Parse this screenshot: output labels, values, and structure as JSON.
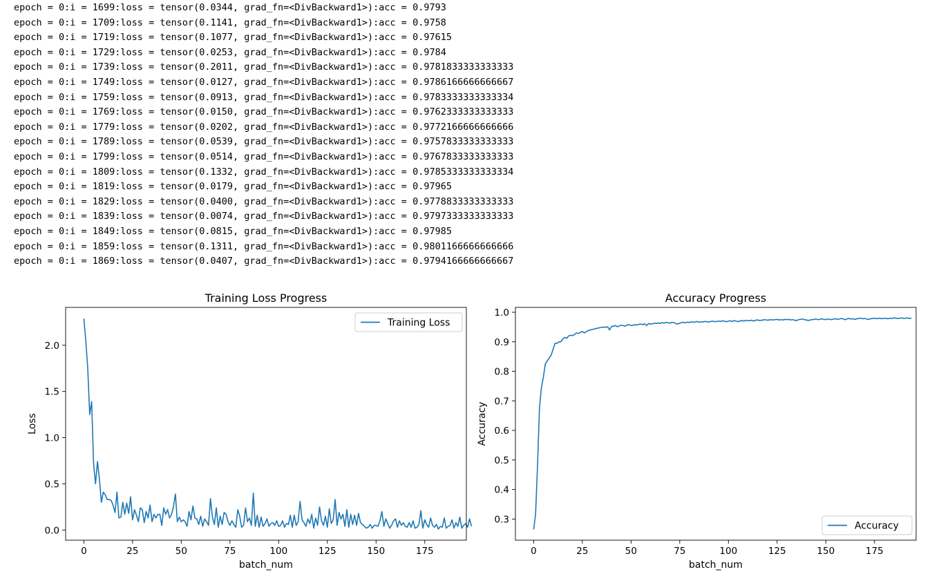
{
  "log_lines": [
    "epoch = 0:i = 1699:loss = tensor(0.0344, grad_fn=<DivBackward1>):acc = 0.9793",
    "epoch = 0:i = 1709:loss = tensor(0.1141, grad_fn=<DivBackward1>):acc = 0.9758",
    "epoch = 0:i = 1719:loss = tensor(0.1077, grad_fn=<DivBackward1>):acc = 0.97615",
    "epoch = 0:i = 1729:loss = tensor(0.0253, grad_fn=<DivBackward1>):acc = 0.9784",
    "epoch = 0:i = 1739:loss = tensor(0.2011, grad_fn=<DivBackward1>):acc = 0.9781833333333333",
    "epoch = 0:i = 1749:loss = tensor(0.0127, grad_fn=<DivBackward1>):acc = 0.9786166666666667",
    "epoch = 0:i = 1759:loss = tensor(0.0913, grad_fn=<DivBackward1>):acc = 0.9783333333333334",
    "epoch = 0:i = 1769:loss = tensor(0.0150, grad_fn=<DivBackward1>):acc = 0.9762333333333333",
    "epoch = 0:i = 1779:loss = tensor(0.0202, grad_fn=<DivBackward1>):acc = 0.9772166666666666",
    "epoch = 0:i = 1789:loss = tensor(0.0539, grad_fn=<DivBackward1>):acc = 0.9757833333333333",
    "epoch = 0:i = 1799:loss = tensor(0.0514, grad_fn=<DivBackward1>):acc = 0.9767833333333333",
    "epoch = 0:i = 1809:loss = tensor(0.1332, grad_fn=<DivBackward1>):acc = 0.9785333333333334",
    "epoch = 0:i = 1819:loss = tensor(0.0179, grad_fn=<DivBackward1>):acc = 0.97965",
    "epoch = 0:i = 1829:loss = tensor(0.0400, grad_fn=<DivBackward1>):acc = 0.9778833333333333",
    "epoch = 0:i = 1839:loss = tensor(0.0074, grad_fn=<DivBackward1>):acc = 0.9797333333333333",
    "epoch = 0:i = 1849:loss = tensor(0.0815, grad_fn=<DivBackward1>):acc = 0.97985",
    "epoch = 0:i = 1859:loss = tensor(0.1311, grad_fn=<DivBackward1>):acc = 0.9801166666666666",
    "epoch = 0:i = 1869:loss = tensor(0.0407, grad_fn=<DivBackward1>):acc = 0.9794166666666667"
  ],
  "colors": {
    "series": "#1f77b4",
    "axis": "#000000",
    "legend_border": "#cccccc"
  },
  "chart_data": [
    {
      "type": "line",
      "title": "Training Loss Progress",
      "xlabel": "batch_num",
      "ylabel": "Loss",
      "xlim": [
        -9.35,
        196.35
      ],
      "ylim": [
        -0.11,
        2.41
      ],
      "xticks": [
        0,
        25,
        50,
        75,
        100,
        125,
        150,
        175
      ],
      "yticks": [
        0.0,
        0.5,
        1.0,
        1.5,
        2.0
      ],
      "ytick_labels": [
        "0.0",
        "0.5",
        "1.0",
        "1.5",
        "2.0"
      ],
      "legend_position": "upper right",
      "grid": false,
      "series": [
        {
          "name": "Training Loss",
          "values": [
            2.29,
            2.05,
            1.75,
            1.25,
            1.39,
            0.72,
            0.5,
            0.74,
            0.55,
            0.3,
            0.41,
            0.38,
            0.33,
            0.33,
            0.32,
            0.27,
            0.19,
            0.41,
            0.13,
            0.14,
            0.3,
            0.17,
            0.29,
            0.18,
            0.36,
            0.11,
            0.22,
            0.16,
            0.09,
            0.24,
            0.22,
            0.08,
            0.2,
            0.13,
            0.27,
            0.09,
            0.17,
            0.13,
            0.17,
            0.17,
            0.05,
            0.24,
            0.17,
            0.22,
            0.13,
            0.17,
            0.25,
            0.39,
            0.09,
            0.14,
            0.09,
            0.11,
            0.09,
            0.04,
            0.2,
            0.11,
            0.26,
            0.13,
            0.12,
            0.06,
            0.15,
            0.04,
            0.12,
            0.09,
            0.05,
            0.34,
            0.14,
            0.06,
            0.24,
            0.03,
            0.15,
            0.06,
            0.19,
            0.17,
            0.09,
            0.05,
            0.1,
            0.06,
            0.03,
            0.22,
            0.15,
            0.03,
            0.05,
            0.24,
            0.09,
            0.13,
            0.05,
            0.4,
            0.04,
            0.16,
            0.03,
            0.14,
            0.04,
            0.07,
            0.12,
            0.04,
            0.07,
            0.08,
            0.05,
            0.1,
            0.04,
            0.05,
            0.1,
            0.03,
            0.07,
            0.06,
            0.16,
            0.03,
            0.16,
            0.05,
            0.09,
            0.31,
            0.11,
            0.08,
            0.04,
            0.12,
            0.07,
            0.17,
            0.02,
            0.13,
            0.05,
            0.25,
            0.1,
            0.05,
            0.15,
            0.03,
            0.23,
            0.07,
            0.11,
            0.33,
            0.05,
            0.19,
            0.12,
            0.17,
            0.04,
            0.22,
            0.03,
            0.17,
            0.06,
            0.16,
            0.05,
            0.18,
            0.08,
            0.06,
            0.04,
            0.02,
            0.03,
            0.06,
            0.02,
            0.05,
            0.05,
            0.04,
            0.1,
            0.2,
            0.04,
            0.12,
            0.07,
            0.02,
            0.05,
            0.1,
            0.12,
            0.03,
            0.1,
            0.05,
            0.08,
            0.04,
            0.03,
            0.08,
            0.03,
            0.1,
            0.02,
            0.03,
            0.06,
            0.21,
            0.02,
            0.11,
            0.06,
            0.03,
            0.13,
            0.05,
            0.03,
            0.06,
            0.01,
            0.04,
            0.03,
            0.13,
            0.02,
            0.04,
            0.05,
            0.11,
            0.02,
            0.08,
            0.04,
            0.14,
            0.02,
            0.05,
            0.07,
            0.03,
            0.12,
            0.04
          ]
        }
      ]
    },
    {
      "type": "line",
      "title": "Accuracy Progress",
      "xlabel": "batch_num",
      "ylabel": "Accuracy",
      "xlim": [
        -9.35,
        196.35
      ],
      "ylim": [
        0.2285,
        1.0165
      ],
      "xticks": [
        0,
        25,
        50,
        75,
        100,
        125,
        150,
        175
      ],
      "yticks": [
        0.3,
        0.4,
        0.5,
        0.6,
        0.7,
        0.8,
        0.9,
        1.0
      ],
      "ytick_labels": [
        "0.3",
        "0.4",
        "0.5",
        "0.6",
        "0.7",
        "0.8",
        "0.9",
        "1.0"
      ],
      "legend_position": "lower right",
      "grid": false,
      "series": [
        {
          "name": "Accuracy",
          "values": [
            0.265,
            0.315,
            0.48,
            0.675,
            0.745,
            0.78,
            0.825,
            0.835,
            0.845,
            0.855,
            0.875,
            0.895,
            0.895,
            0.9,
            0.9,
            0.91,
            0.915,
            0.912,
            0.92,
            0.922,
            0.921,
            0.925,
            0.93,
            0.928,
            0.932,
            0.935,
            0.93,
            0.934,
            0.938,
            0.94,
            0.942,
            0.943,
            0.945,
            0.946,
            0.948,
            0.949,
            0.95,
            0.949,
            0.951,
            0.94,
            0.952,
            0.953,
            0.955,
            0.951,
            0.954,
            0.956,
            0.955,
            0.953,
            0.957,
            0.958,
            0.955,
            0.956,
            0.958,
            0.957,
            0.959,
            0.96,
            0.958,
            0.961,
            0.955,
            0.962,
            0.96,
            0.961,
            0.963,
            0.962,
            0.964,
            0.962,
            0.965,
            0.963,
            0.966,
            0.964,
            0.963,
            0.966,
            0.965,
            0.962,
            0.96,
            0.963,
            0.965,
            0.966,
            0.964,
            0.967,
            0.965,
            0.968,
            0.966,
            0.967,
            0.969,
            0.966,
            0.968,
            0.967,
            0.969,
            0.968,
            0.967,
            0.969,
            0.97,
            0.968,
            0.969,
            0.97,
            0.969,
            0.971,
            0.97,
            0.968,
            0.97,
            0.971,
            0.969,
            0.972,
            0.97,
            0.968,
            0.971,
            0.972,
            0.97,
            0.973,
            0.971,
            0.972,
            0.973,
            0.97,
            0.973,
            0.974,
            0.972,
            0.973,
            0.974,
            0.975,
            0.973,
            0.974,
            0.975,
            0.974,
            0.975,
            0.976,
            0.974,
            0.975,
            0.974,
            0.976,
            0.975,
            0.976,
            0.974,
            0.975,
            0.973,
            0.972,
            0.975,
            0.976,
            0.977,
            0.975,
            0.974,
            0.972,
            0.974,
            0.975,
            0.976,
            0.977,
            0.975,
            0.976,
            0.978,
            0.976,
            0.975,
            0.977,
            0.976,
            0.975,
            0.977,
            0.978,
            0.976,
            0.977,
            0.979,
            0.977,
            0.975,
            0.978,
            0.979,
            0.977,
            0.978,
            0.976,
            0.978,
            0.979,
            0.98,
            0.978,
            0.979,
            0.977,
            0.976,
            0.978,
            0.979,
            0.98,
            0.978,
            0.98,
            0.979,
            0.978,
            0.98,
            0.979,
            0.978,
            0.98,
            0.979,
            0.981,
            0.98,
            0.979,
            0.98,
            0.981,
            0.979,
            0.98,
            0.981,
            0.979,
            0.98
          ]
        }
      ]
    }
  ]
}
